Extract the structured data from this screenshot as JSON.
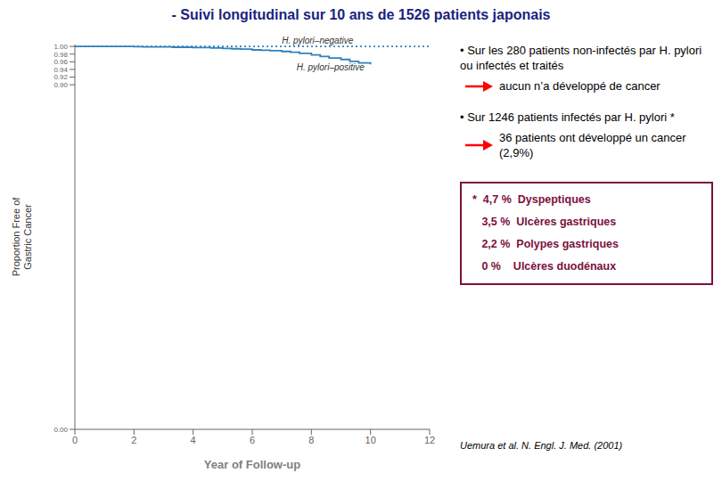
{
  "chart_data": {
    "type": "line",
    "title": "- Suivi longitudinal sur 10 ans de 1526 patients japonais",
    "xlabel": "Year of Follow-up",
    "ylabel": "Proportion Free of\nGastric Cancer",
    "series": [
      {
        "name": "H. pylori–negative",
        "type": "line",
        "line_style": "dotted",
        "x": [
          0,
          0.5,
          1,
          1.5,
          2,
          2.5,
          3,
          3.5,
          4,
          4.5,
          5,
          5.5,
          6,
          6.5,
          7,
          7.5,
          8,
          8.5,
          9,
          9.5,
          10,
          10.5,
          11,
          11.5,
          12
        ],
        "values": [
          1.0,
          1.0,
          1.0,
          1.0,
          1.0,
          1.0,
          1.0,
          1.0,
          1.0,
          1.0,
          1.0,
          1.0,
          1.0,
          1.0,
          1.0,
          1.0,
          1.0,
          1.0,
          1.0,
          1.0,
          1.0,
          1.0,
          1.0,
          1.0,
          1.0
        ]
      },
      {
        "name": "H. pylori–positive",
        "type": "step",
        "line_style": "solid",
        "x": [
          0,
          0.3,
          0.6,
          1.0,
          1.3,
          1.6,
          2.0,
          2.3,
          2.6,
          3.0,
          3.3,
          3.6,
          4.0,
          4.3,
          4.6,
          5.0,
          5.3,
          5.6,
          6.0,
          6.3,
          6.6,
          7.0,
          7.3,
          7.6,
          8.0,
          8.3,
          8.6,
          9.0,
          9.3,
          9.6,
          10.0
        ],
        "values": [
          1.0,
          1.0,
          1.0,
          1.0,
          1.0,
          1.0,
          0.9995,
          0.999,
          0.999,
          0.999,
          0.998,
          0.998,
          0.997,
          0.997,
          0.996,
          0.995,
          0.994,
          0.993,
          0.991,
          0.99,
          0.989,
          0.987,
          0.985,
          0.982,
          0.978,
          0.974,
          0.97,
          0.966,
          0.961,
          0.957,
          0.953
        ]
      }
    ],
    "xlim": [
      0,
      12
    ],
    "ylim": [
      0.0,
      1.005
    ],
    "xticks": [
      0,
      2,
      4,
      6,
      8,
      10,
      12
    ],
    "yticks": [
      {
        "value": 0.0,
        "label": "0.00"
      },
      {
        "value": 0.9,
        "label": "0.90"
      },
      0.92,
      0.94,
      0.96,
      0.98,
      {
        "value": 1.0,
        "label": "1.00"
      }
    ],
    "annotations": {
      "bullets": [
        {
          "text": "• Sur les 280 patients non-infectés par H. pylori ou infectés et traités",
          "result": "aucun n’a développé de cancer"
        },
        {
          "text": "• Sur 1246 patients infectés par H. pylori *",
          "result": "36 patients ont développé un cancer (2,9%)"
        }
      ],
      "box": [
        "*  4,7 %  Dyspeptiques",
        "   3,5 %  Ulcères gastriques",
        "   2,2 %  Polypes gastriques",
        "   0 %    Ulcères duodénaux"
      ],
      "citation": "Uemura et al. N. Engl. J. Med. (2001)"
    }
  }
}
